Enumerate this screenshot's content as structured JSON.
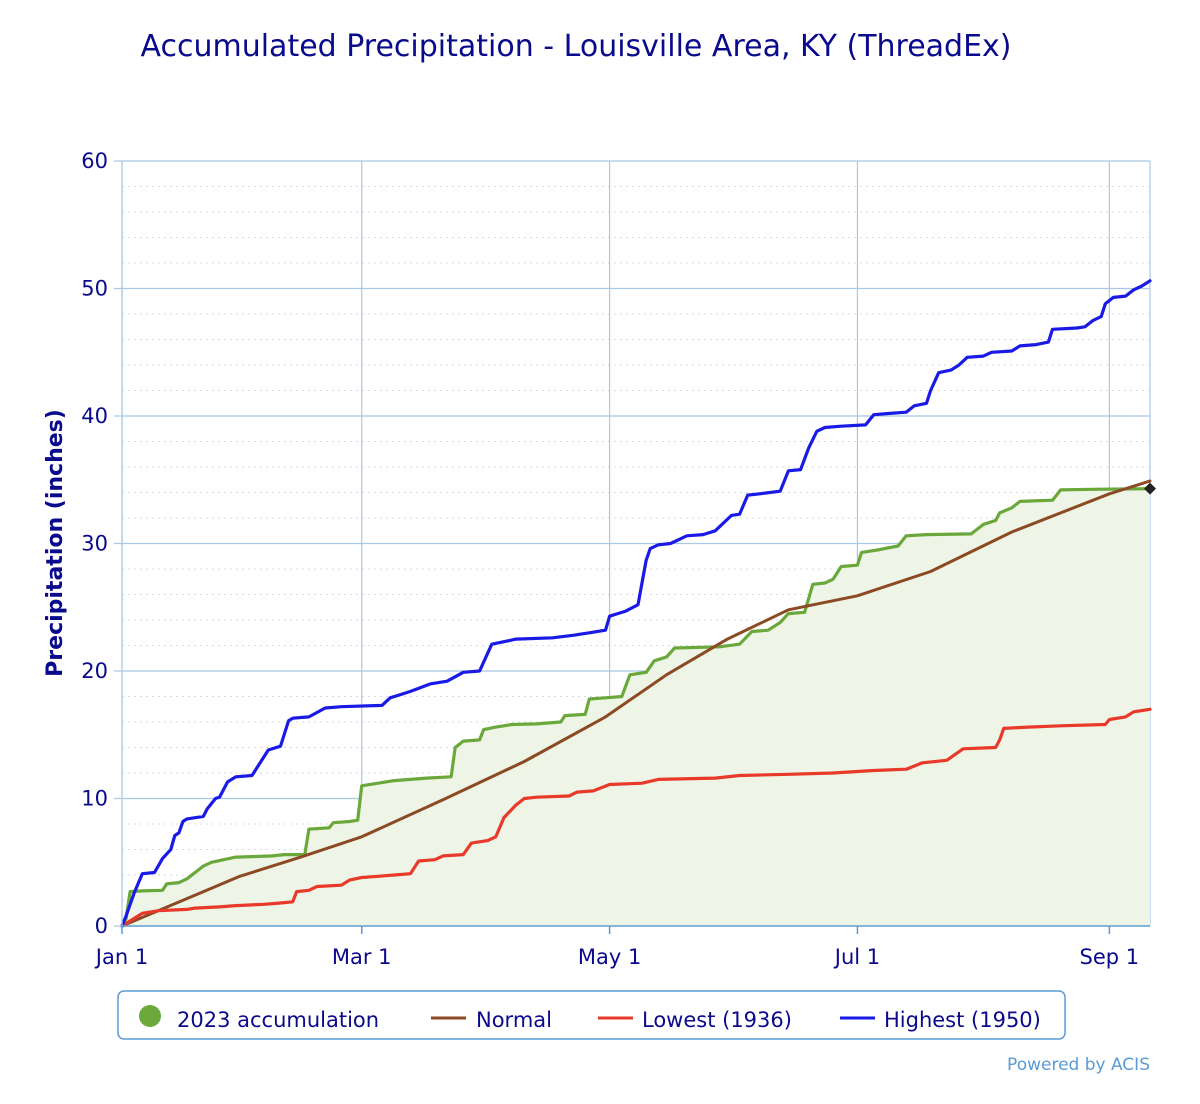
{
  "chart_data": {
    "type": "line",
    "title": "Accumulated Precipitation - Louisville Area, KY (ThreadEx)",
    "ylabel": "Precipitation (inches)",
    "xlabel": "",
    "ylim": [
      0,
      60
    ],
    "yticks": [
      "0",
      "10",
      "20",
      "30",
      "40",
      "50",
      "60"
    ],
    "xlim": [
      1,
      254
    ],
    "xticks": [
      {
        "label": "Jan 1",
        "day": 1
      },
      {
        "label": "Mar 1",
        "day": 60
      },
      {
        "label": "May 1",
        "day": 121
      },
      {
        "label": "Jul 1",
        "day": 182
      },
      {
        "label": "Sep 1",
        "day": 244
      }
    ],
    "grid": true,
    "legend_position": "bottom",
    "series": [
      {
        "name": "2023 accumulation",
        "style": "step-area",
        "color": "#6aa83c",
        "fill": "#eef5e6",
        "points": [
          [
            1,
            0
          ],
          [
            2,
            0.6
          ],
          [
            3,
            2.7
          ],
          [
            6,
            2.75
          ],
          [
            11,
            2.8
          ],
          [
            12,
            3.3
          ],
          [
            15,
            3.4
          ],
          [
            17,
            3.7
          ],
          [
            19,
            4.2
          ],
          [
            21,
            4.7
          ],
          [
            23,
            5.0
          ],
          [
            26,
            5.2
          ],
          [
            29,
            5.4
          ],
          [
            34,
            5.45
          ],
          [
            38,
            5.5
          ],
          [
            41,
            5.6
          ],
          [
            46,
            5.6
          ],
          [
            47,
            7.6
          ],
          [
            52,
            7.7
          ],
          [
            53,
            8.1
          ],
          [
            57,
            8.2
          ],
          [
            59,
            8.3
          ],
          [
            60,
            11.0
          ],
          [
            64,
            11.2
          ],
          [
            68,
            11.4
          ],
          [
            72,
            11.5
          ],
          [
            76,
            11.6
          ],
          [
            82,
            11.7
          ],
          [
            83,
            14.0
          ],
          [
            85,
            14.5
          ],
          [
            89,
            14.6
          ],
          [
            90,
            15.4
          ],
          [
            93,
            15.6
          ],
          [
            97,
            15.8
          ],
          [
            103,
            15.85
          ],
          [
            109,
            16.0
          ],
          [
            110,
            16.5
          ],
          [
            115,
            16.6
          ],
          [
            116,
            17.8
          ],
          [
            120,
            17.9
          ],
          [
            124,
            18.0
          ],
          [
            126,
            19.7
          ],
          [
            130,
            19.9
          ],
          [
            132,
            20.8
          ],
          [
            135,
            21.1
          ],
          [
            137,
            21.8
          ],
          [
            148,
            21.9
          ],
          [
            153,
            22.1
          ],
          [
            156,
            23.1
          ],
          [
            160,
            23.2
          ],
          [
            163,
            23.8
          ],
          [
            165,
            24.5
          ],
          [
            169,
            24.6
          ],
          [
            171,
            26.8
          ],
          [
            174,
            26.9
          ],
          [
            176,
            27.2
          ],
          [
            178,
            28.2
          ],
          [
            182,
            28.3
          ],
          [
            183,
            29.3
          ],
          [
            187,
            29.5
          ],
          [
            192,
            29.8
          ],
          [
            194,
            30.6
          ],
          [
            199,
            30.7
          ],
          [
            210,
            30.75
          ],
          [
            213,
            31.5
          ],
          [
            216,
            31.8
          ],
          [
            217,
            32.4
          ],
          [
            220,
            32.8
          ],
          [
            222,
            33.3
          ],
          [
            230,
            33.4
          ],
          [
            232,
            34.2
          ],
          [
            240,
            34.25
          ],
          [
            254,
            34.3
          ]
        ]
      },
      {
        "name": "Normal",
        "style": "line",
        "color": "#8b4a24",
        "points": [
          [
            1,
            0
          ],
          [
            30,
            3.9
          ],
          [
            45,
            5.4
          ],
          [
            60,
            7.0
          ],
          [
            80,
            9.9
          ],
          [
            100,
            12.9
          ],
          [
            120,
            16.4
          ],
          [
            135,
            19.7
          ],
          [
            150,
            22.5
          ],
          [
            165,
            24.8
          ],
          [
            182,
            25.9
          ],
          [
            200,
            27.8
          ],
          [
            220,
            30.9
          ],
          [
            244,
            33.9
          ],
          [
            254,
            34.9
          ]
        ]
      },
      {
        "name": "Lowest (1936)",
        "style": "step",
        "color": "#e8392a",
        "points": [
          [
            1,
            0
          ],
          [
            4,
            0.6
          ],
          [
            6,
            1.0
          ],
          [
            10,
            1.2
          ],
          [
            17,
            1.3
          ],
          [
            19,
            1.4
          ],
          [
            25,
            1.5
          ],
          [
            29,
            1.6
          ],
          [
            36,
            1.7
          ],
          [
            40,
            1.8
          ],
          [
            43,
            1.9
          ],
          [
            44,
            2.7
          ],
          [
            47,
            2.8
          ],
          [
            49,
            3.1
          ],
          [
            55,
            3.2
          ],
          [
            57,
            3.6
          ],
          [
            60,
            3.8
          ],
          [
            64,
            3.9
          ],
          [
            68,
            4.0
          ],
          [
            72,
            4.1
          ],
          [
            74,
            5.1
          ],
          [
            78,
            5.2
          ],
          [
            80,
            5.5
          ],
          [
            85,
            5.6
          ],
          [
            87,
            6.5
          ],
          [
            91,
            6.7
          ],
          [
            93,
            7.0
          ],
          [
            95,
            8.5
          ],
          [
            98,
            9.5
          ],
          [
            100,
            10.0
          ],
          [
            103,
            10.1
          ],
          [
            111,
            10.2
          ],
          [
            113,
            10.5
          ],
          [
            117,
            10.6
          ],
          [
            121,
            11.1
          ],
          [
            129,
            11.2
          ],
          [
            133,
            11.5
          ],
          [
            147,
            11.6
          ],
          [
            153,
            11.8
          ],
          [
            165,
            11.9
          ],
          [
            176,
            12.0
          ],
          [
            186,
            12.2
          ],
          [
            194,
            12.3
          ],
          [
            198,
            12.8
          ],
          [
            204,
            13.0
          ],
          [
            208,
            13.9
          ],
          [
            216,
            14.0
          ],
          [
            217,
            14.6
          ],
          [
            218,
            15.5
          ],
          [
            224,
            15.6
          ],
          [
            232,
            15.7
          ],
          [
            243,
            15.8
          ],
          [
            244,
            16.2
          ],
          [
            248,
            16.4
          ],
          [
            250,
            16.8
          ],
          [
            254,
            17.0
          ]
        ]
      },
      {
        "name": "Highest (1950)",
        "style": "step",
        "color": "#1a1ae6",
        "points": [
          [
            1,
            0
          ],
          [
            2,
            0.8
          ],
          [
            4,
            2.6
          ],
          [
            6,
            4.1
          ],
          [
            9,
            4.2
          ],
          [
            11,
            5.3
          ],
          [
            13,
            6.0
          ],
          [
            14,
            7.1
          ],
          [
            15,
            7.3
          ],
          [
            16,
            8.2
          ],
          [
            17,
            8.4
          ],
          [
            21,
            8.6
          ],
          [
            22,
            9.2
          ],
          [
            24,
            10.0
          ],
          [
            25,
            10.1
          ],
          [
            27,
            11.3
          ],
          [
            29,
            11.7
          ],
          [
            33,
            11.8
          ],
          [
            37,
            13.8
          ],
          [
            40,
            14.1
          ],
          [
            42,
            16.1
          ],
          [
            43,
            16.3
          ],
          [
            47,
            16.4
          ],
          [
            51,
            17.1
          ],
          [
            55,
            17.2
          ],
          [
            65,
            17.3
          ],
          [
            67,
            17.9
          ],
          [
            70,
            18.2
          ],
          [
            72,
            18.4
          ],
          [
            77,
            19.0
          ],
          [
            81,
            19.2
          ],
          [
            85,
            19.9
          ],
          [
            89,
            20.0
          ],
          [
            92,
            22.1
          ],
          [
            95,
            22.3
          ],
          [
            98,
            22.5
          ],
          [
            107,
            22.6
          ],
          [
            112,
            22.8
          ],
          [
            116,
            23.0
          ],
          [
            120,
            23.2
          ],
          [
            121,
            24.3
          ],
          [
            123,
            24.5
          ],
          [
            125,
            24.7
          ],
          [
            128,
            25.2
          ],
          [
            130,
            28.7
          ],
          [
            131,
            29.6
          ],
          [
            133,
            29.9
          ],
          [
            136,
            30.0
          ],
          [
            138,
            30.3
          ],
          [
            140,
            30.6
          ],
          [
            144,
            30.7
          ],
          [
            147,
            31.0
          ],
          [
            149,
            31.6
          ],
          [
            151,
            32.2
          ],
          [
            153,
            32.3
          ],
          [
            155,
            33.8
          ],
          [
            158,
            33.9
          ],
          [
            163,
            34.1
          ],
          [
            165,
            35.7
          ],
          [
            168,
            35.8
          ],
          [
            170,
            37.5
          ],
          [
            172,
            38.8
          ],
          [
            174,
            39.1
          ],
          [
            178,
            39.2
          ],
          [
            184,
            39.3
          ],
          [
            186,
            40.1
          ],
          [
            190,
            40.2
          ],
          [
            194,
            40.3
          ],
          [
            196,
            40.8
          ],
          [
            199,
            41.0
          ],
          [
            200,
            42.0
          ],
          [
            202,
            43.4
          ],
          [
            205,
            43.6
          ],
          [
            207,
            44.0
          ],
          [
            209,
            44.6
          ],
          [
            213,
            44.7
          ],
          [
            215,
            45.0
          ],
          [
            220,
            45.1
          ],
          [
            222,
            45.5
          ],
          [
            226,
            45.6
          ],
          [
            229,
            45.8
          ],
          [
            230,
            46.8
          ],
          [
            236,
            46.9
          ],
          [
            238,
            47.0
          ],
          [
            240,
            47.5
          ],
          [
            242,
            47.8
          ],
          [
            243,
            48.8
          ],
          [
            245,
            49.3
          ],
          [
            248,
            49.4
          ],
          [
            250,
            49.9
          ],
          [
            252,
            50.2
          ],
          [
            254,
            50.6
          ]
        ]
      }
    ],
    "end_marker": {
      "day": 254,
      "value": 34.3,
      "color": "#222222"
    }
  },
  "legend": {
    "items": [
      {
        "label": "2023 accumulation",
        "color": "#6aa83c",
        "symbol": "dot"
      },
      {
        "label": "Normal",
        "color": "#8b4a24",
        "symbol": "line"
      },
      {
        "label": "Lowest (1936)",
        "color": "#e8392a",
        "symbol": "line"
      },
      {
        "label": "Highest (1950)",
        "color": "#1a1ae6",
        "symbol": "line"
      }
    ]
  },
  "credit": "Powered by ACIS"
}
